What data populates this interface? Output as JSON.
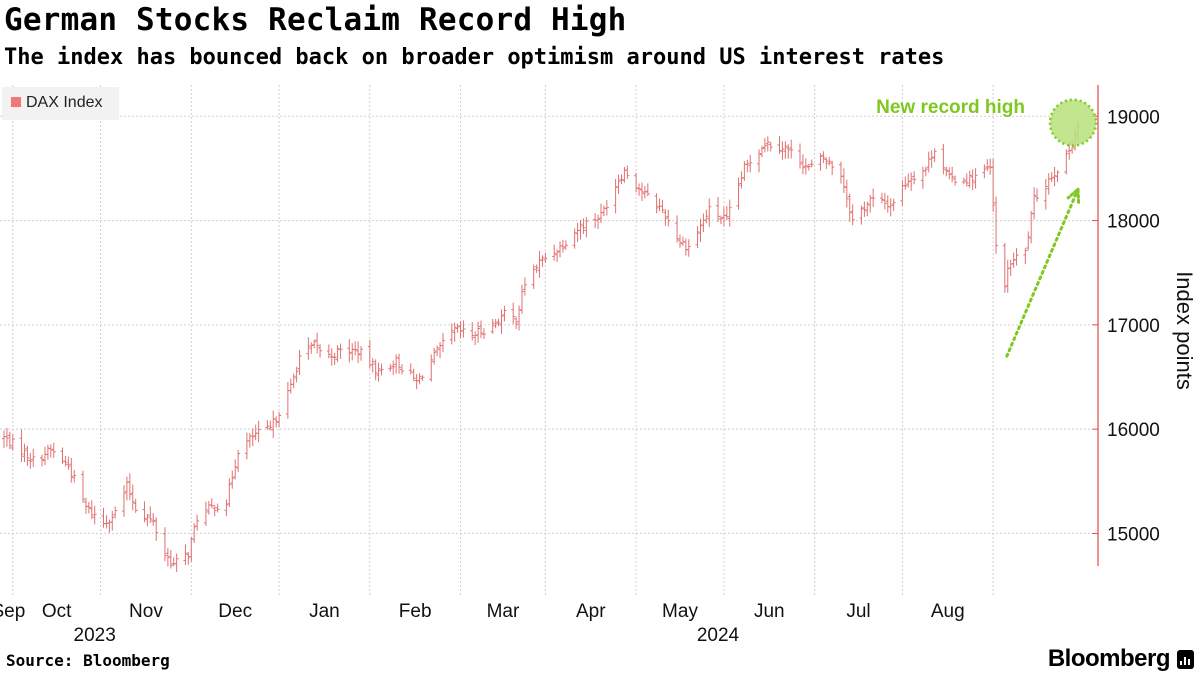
{
  "title": "German Stocks Reclaim Record High",
  "subtitle": "The index has bounced back on broader optimism around US interest rates",
  "source": "Source: Bloomberg",
  "brand": "Bloomberg",
  "brand_icon": "bloomberg-terminal-icon",
  "colors": {
    "series": "#e07070",
    "legend_swatch": "#f07878",
    "annotation": "#7ec820",
    "annotation_fill": "#b6e27a",
    "axis": "#e84848",
    "grid": "#cfcfcf"
  },
  "chart_data": {
    "type": "line",
    "series_style": "ohlc-bars",
    "title": "German Stocks Reclaim Record High",
    "legend": [
      {
        "label": "DAX Index",
        "position": "top-left"
      }
    ],
    "ylabel": "Index points",
    "ylim": [
      14400,
      19300
    ],
    "yticks": [
      15000,
      16000,
      17000,
      18000,
      19000
    ],
    "grid": true,
    "x_range": [
      "2023-08-29",
      "2024-08-30"
    ],
    "month_labels": [
      "Sep",
      "Oct",
      "Nov",
      "Dec",
      "Jan",
      "Feb",
      "Mar",
      "Apr",
      "May",
      "Jun",
      "Jul",
      "Aug"
    ],
    "year_labels": [
      "2023",
      "2024"
    ],
    "anchors": [
      [
        "2023-08-29",
        15920
      ],
      [
        "2023-09-04",
        15800
      ],
      [
        "2023-09-08",
        15700
      ],
      [
        "2023-09-14",
        15800
      ],
      [
        "2023-09-20",
        15650
      ],
      [
        "2023-09-26",
        15250
      ],
      [
        "2023-10-02",
        15100
      ],
      [
        "2023-10-06",
        15200
      ],
      [
        "2023-10-10",
        15450
      ],
      [
        "2023-10-13",
        15250
      ],
      [
        "2023-10-19",
        15100
      ],
      [
        "2023-10-23",
        14800
      ],
      [
        "2023-10-26",
        14700
      ],
      [
        "2023-10-31",
        14810
      ],
      [
        "2023-11-03",
        15150
      ],
      [
        "2023-11-08",
        15250
      ],
      [
        "2023-11-13",
        15300
      ],
      [
        "2023-11-17",
        15800
      ],
      [
        "2023-11-23",
        15950
      ],
      [
        "2023-11-28",
        16000
      ],
      [
        "2023-12-05",
        16400
      ],
      [
        "2023-12-08",
        16700
      ],
      [
        "2023-12-13",
        16800
      ],
      [
        "2023-12-18",
        16700
      ],
      [
        "2023-12-22",
        16750
      ],
      [
        "2023-12-28",
        16750
      ],
      [
        "2024-01-04",
        16550
      ],
      [
        "2024-01-10",
        16650
      ],
      [
        "2024-01-17",
        16450
      ],
      [
        "2024-01-23",
        16700
      ],
      [
        "2024-01-30",
        16950
      ],
      [
        "2024-02-05",
        16900
      ],
      [
        "2024-02-12",
        17000
      ],
      [
        "2024-02-16",
        17100
      ],
      [
        "2024-02-20",
        17050
      ],
      [
        "2024-02-23",
        17400
      ],
      [
        "2024-02-28",
        17600
      ],
      [
        "2024-03-06",
        17750
      ],
      [
        "2024-03-13",
        17950
      ],
      [
        "2024-03-20",
        18050
      ],
      [
        "2024-03-26",
        18400
      ],
      [
        "2024-03-28",
        18480
      ],
      [
        "2024-04-04",
        18250
      ],
      [
        "2024-04-10",
        18100
      ],
      [
        "2024-04-16",
        17800
      ],
      [
        "2024-04-19",
        17750
      ],
      [
        "2024-04-26",
        18100
      ],
      [
        "2024-05-02",
        18000
      ],
      [
        "2024-05-08",
        18500
      ],
      [
        "2024-05-15",
        18750
      ],
      [
        "2024-05-22",
        18700
      ],
      [
        "2024-05-30",
        18500
      ],
      [
        "2024-06-04",
        18600
      ],
      [
        "2024-06-10",
        18450
      ],
      [
        "2024-06-14",
        18000
      ],
      [
        "2024-06-20",
        18200
      ],
      [
        "2024-06-27",
        18150
      ],
      [
        "2024-07-03",
        18400
      ],
      [
        "2024-07-09",
        18500
      ],
      [
        "2024-07-12",
        18700
      ],
      [
        "2024-07-17",
        18400
      ],
      [
        "2024-07-24",
        18400
      ],
      [
        "2024-07-31",
        18500
      ],
      [
        "2024-08-02",
        17750
      ],
      [
        "2024-08-05",
        17400
      ],
      [
        "2024-08-07",
        17600
      ],
      [
        "2024-08-12",
        17700
      ],
      [
        "2024-08-15",
        18200
      ],
      [
        "2024-08-20",
        18400
      ],
      [
        "2024-08-26",
        18600
      ],
      [
        "2024-08-30",
        18910
      ]
    ],
    "annotations": [
      {
        "text": "New record high",
        "date": "2024-08-30",
        "value": 18910,
        "marker": "circle"
      },
      {
        "marker": "arrow",
        "from_date": "2024-08-05",
        "from_value": 16700,
        "to_date": "2024-08-30",
        "to_value": 18300
      }
    ]
  }
}
